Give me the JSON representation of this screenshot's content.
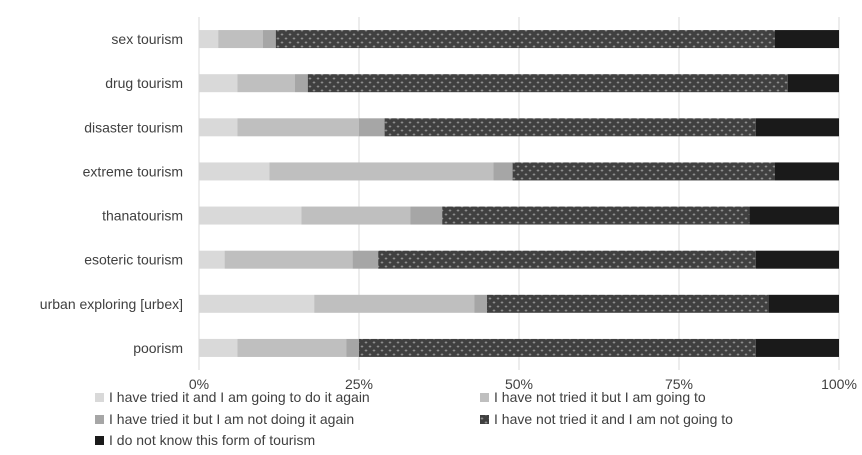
{
  "chart_data": {
    "type": "bar",
    "orientation": "horizontal",
    "stacked": true,
    "percent_stacked": true,
    "categories": [
      "sex tourism",
      "drug tourism",
      "disaster tourism",
      "extreme tourism",
      "thanatourism",
      "esoteric tourism",
      "urban exploring [urbex]",
      "poorism"
    ],
    "series": [
      {
        "name": "I have tried it and I am going to do it again",
        "color": "#d9d9d9",
        "pattern": "solid",
        "values": [
          3,
          6,
          6,
          11,
          16,
          4,
          18,
          6
        ]
      },
      {
        "name": "I have not tried it but I am going to",
        "color": "#bfbfbf",
        "pattern": "solid",
        "values": [
          7,
          9,
          19,
          35,
          17,
          20,
          25,
          17
        ]
      },
      {
        "name": "I have tried it but I am not doing it again",
        "color": "#a6a6a6",
        "pattern": "solid",
        "values": [
          2,
          2,
          4,
          3,
          5,
          4,
          2,
          2
        ]
      },
      {
        "name": "I have not tried it and I am not going to",
        "color": "#404040",
        "pattern": "dotted",
        "values": [
          78,
          75,
          58,
          41,
          48,
          59,
          44,
          62
        ]
      },
      {
        "name": "I do not know this form of tourism",
        "color": "#1a1a1a",
        "pattern": "solid",
        "values": [
          10,
          8,
          13,
          10,
          14,
          13,
          11,
          13
        ]
      }
    ],
    "xlim": [
      0,
      100
    ],
    "xticks": [
      "0%",
      "25%",
      "50%",
      "75%",
      "100%"
    ],
    "xlabel": "",
    "ylabel": "",
    "grid": true,
    "legend_position": "bottom"
  }
}
